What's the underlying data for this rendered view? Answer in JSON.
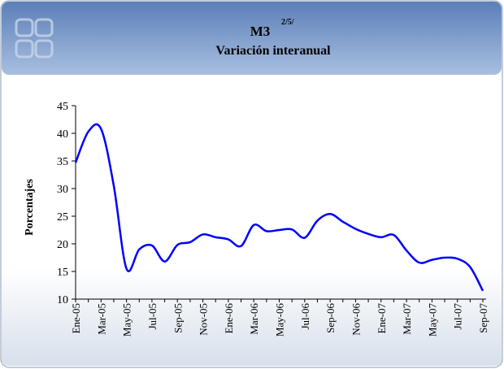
{
  "chart_data": {
    "type": "line",
    "title": "M3",
    "title_note": "2/5/",
    "subtitle": "Variación interanual",
    "y_label": "Porcentajes",
    "categories": [
      "Ene-05",
      null,
      "Mar-05",
      null,
      "May-05",
      null,
      "Jul-05",
      null,
      "Sep-05",
      null,
      "Nov-05",
      null,
      "Ene-06",
      null,
      "Mar-06",
      null,
      "May-06",
      null,
      "Jul-06",
      null,
      "Sep-06",
      null,
      "Nov-06",
      null,
      "Ene-07",
      null,
      "Mar-07",
      null,
      "May-07",
      null,
      "Jul-07",
      null,
      "Sep-07"
    ],
    "series": [
      {
        "name": "M3",
        "color": "#0000ff",
        "values": [
          34.7,
          40.3,
          40.8,
          30.5,
          15.5,
          19.0,
          19.7,
          16.8,
          19.8,
          20.3,
          21.7,
          21.2,
          20.8,
          19.6,
          23.4,
          22.3,
          22.5,
          22.6,
          21.1,
          24.2,
          25.4,
          24.0,
          22.7,
          21.8,
          21.2,
          21.6,
          18.8,
          16.6,
          17.1,
          17.5,
          17.3,
          15.8,
          11.5
        ]
      }
    ],
    "ylim": [
      10,
      45
    ],
    "yticks": [
      10,
      15,
      20,
      25,
      30,
      35,
      40,
      45
    ],
    "grid": false,
    "legend": false
  }
}
